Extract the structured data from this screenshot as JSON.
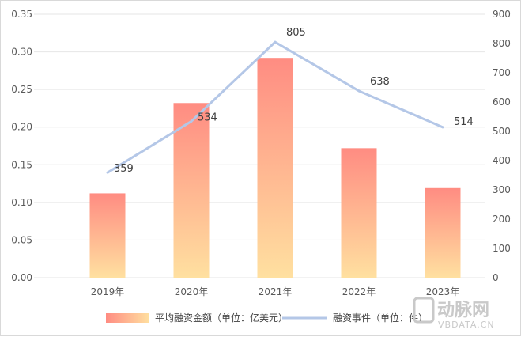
{
  "chart_data": {
    "type": "bar",
    "categories": [
      "2019年",
      "2020年",
      "2021年",
      "2022年",
      "2023年"
    ],
    "series": [
      {
        "name": "平均融资金额（单位：亿美元）",
        "type": "bar",
        "axis": "left",
        "values": [
          0.112,
          0.232,
          0.292,
          0.172,
          0.119
        ]
      },
      {
        "name": "融资事件（单位：件）",
        "type": "line",
        "axis": "right",
        "values": [
          359,
          534,
          805,
          638,
          514
        ]
      }
    ],
    "data_labels": [
      "359",
      "534",
      "805",
      "638",
      "514"
    ],
    "y_left": {
      "ylim": [
        0,
        0.35
      ],
      "ticks": [
        "0.00",
        "0.05",
        "0.10",
        "0.15",
        "0.20",
        "0.25",
        "0.30",
        "0.35"
      ]
    },
    "y_right": {
      "ylim": [
        0,
        900
      ],
      "ticks": [
        "0",
        "100",
        "200",
        "300",
        "400",
        "500",
        "600",
        "700",
        "800",
        "900"
      ]
    },
    "legend_position": "bottom",
    "grid": true,
    "colors": {
      "bar_top": "#ff8c82",
      "bar_bottom": "#ffe0a0",
      "line": "#b4c7e7",
      "grid": "#e6e6e6"
    }
  },
  "watermark": {
    "main": "动脉网",
    "sub": "VBDATA.CN"
  }
}
